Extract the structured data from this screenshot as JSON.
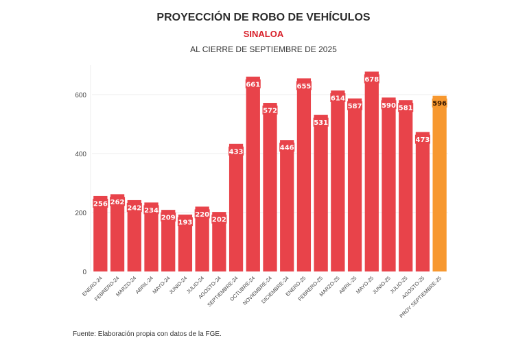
{
  "chart_data": {
    "type": "bar",
    "title": "PROYECCIÓN DE ROBO DE VEHÍCULOS",
    "subtitle": "SINALOA",
    "subtitle2": "AL CIERRE DE SEPTIEMBRE DE 2025",
    "xlabel": "",
    "ylabel": "",
    "ylim": [
      0,
      700
    ],
    "yticks": [
      0,
      200,
      400,
      600
    ],
    "grid": true,
    "legend": "none",
    "categories": [
      "ENERO-24",
      "FEBRERO-24",
      "MARZO-24",
      "ABRIL-24",
      "MAYO-24",
      "JUNIO-24",
      "JULIO-24",
      "AGOSTO-24",
      "SEPTIEMBRE-24",
      "OCTUBRE-24",
      "NOVIEMBRE-24",
      "DICIEMBRE-24",
      "ENERO-25",
      "FEBRERO-25",
      "MARZO-25",
      "ABRIL-25",
      "MAYO-25",
      "JUNIO-25",
      "JULIO-25",
      "AGOSTO-25",
      "PROY SEPTIEMBRE-25"
    ],
    "values": [
      256,
      262,
      242,
      234,
      209,
      193,
      220,
      202,
      433,
      661,
      572,
      446,
      655,
      531,
      614,
      587,
      678,
      590,
      581,
      473,
      596
    ],
    "highlight_index": 20,
    "colors": {
      "bar": "#e8434a",
      "highlight": "#f7982f",
      "label_text": "#ffffff",
      "highlight_label_text": "#3a1a00"
    }
  },
  "footer": {
    "source": "Fuente: Elaboración propia con datos de la FGE."
  }
}
